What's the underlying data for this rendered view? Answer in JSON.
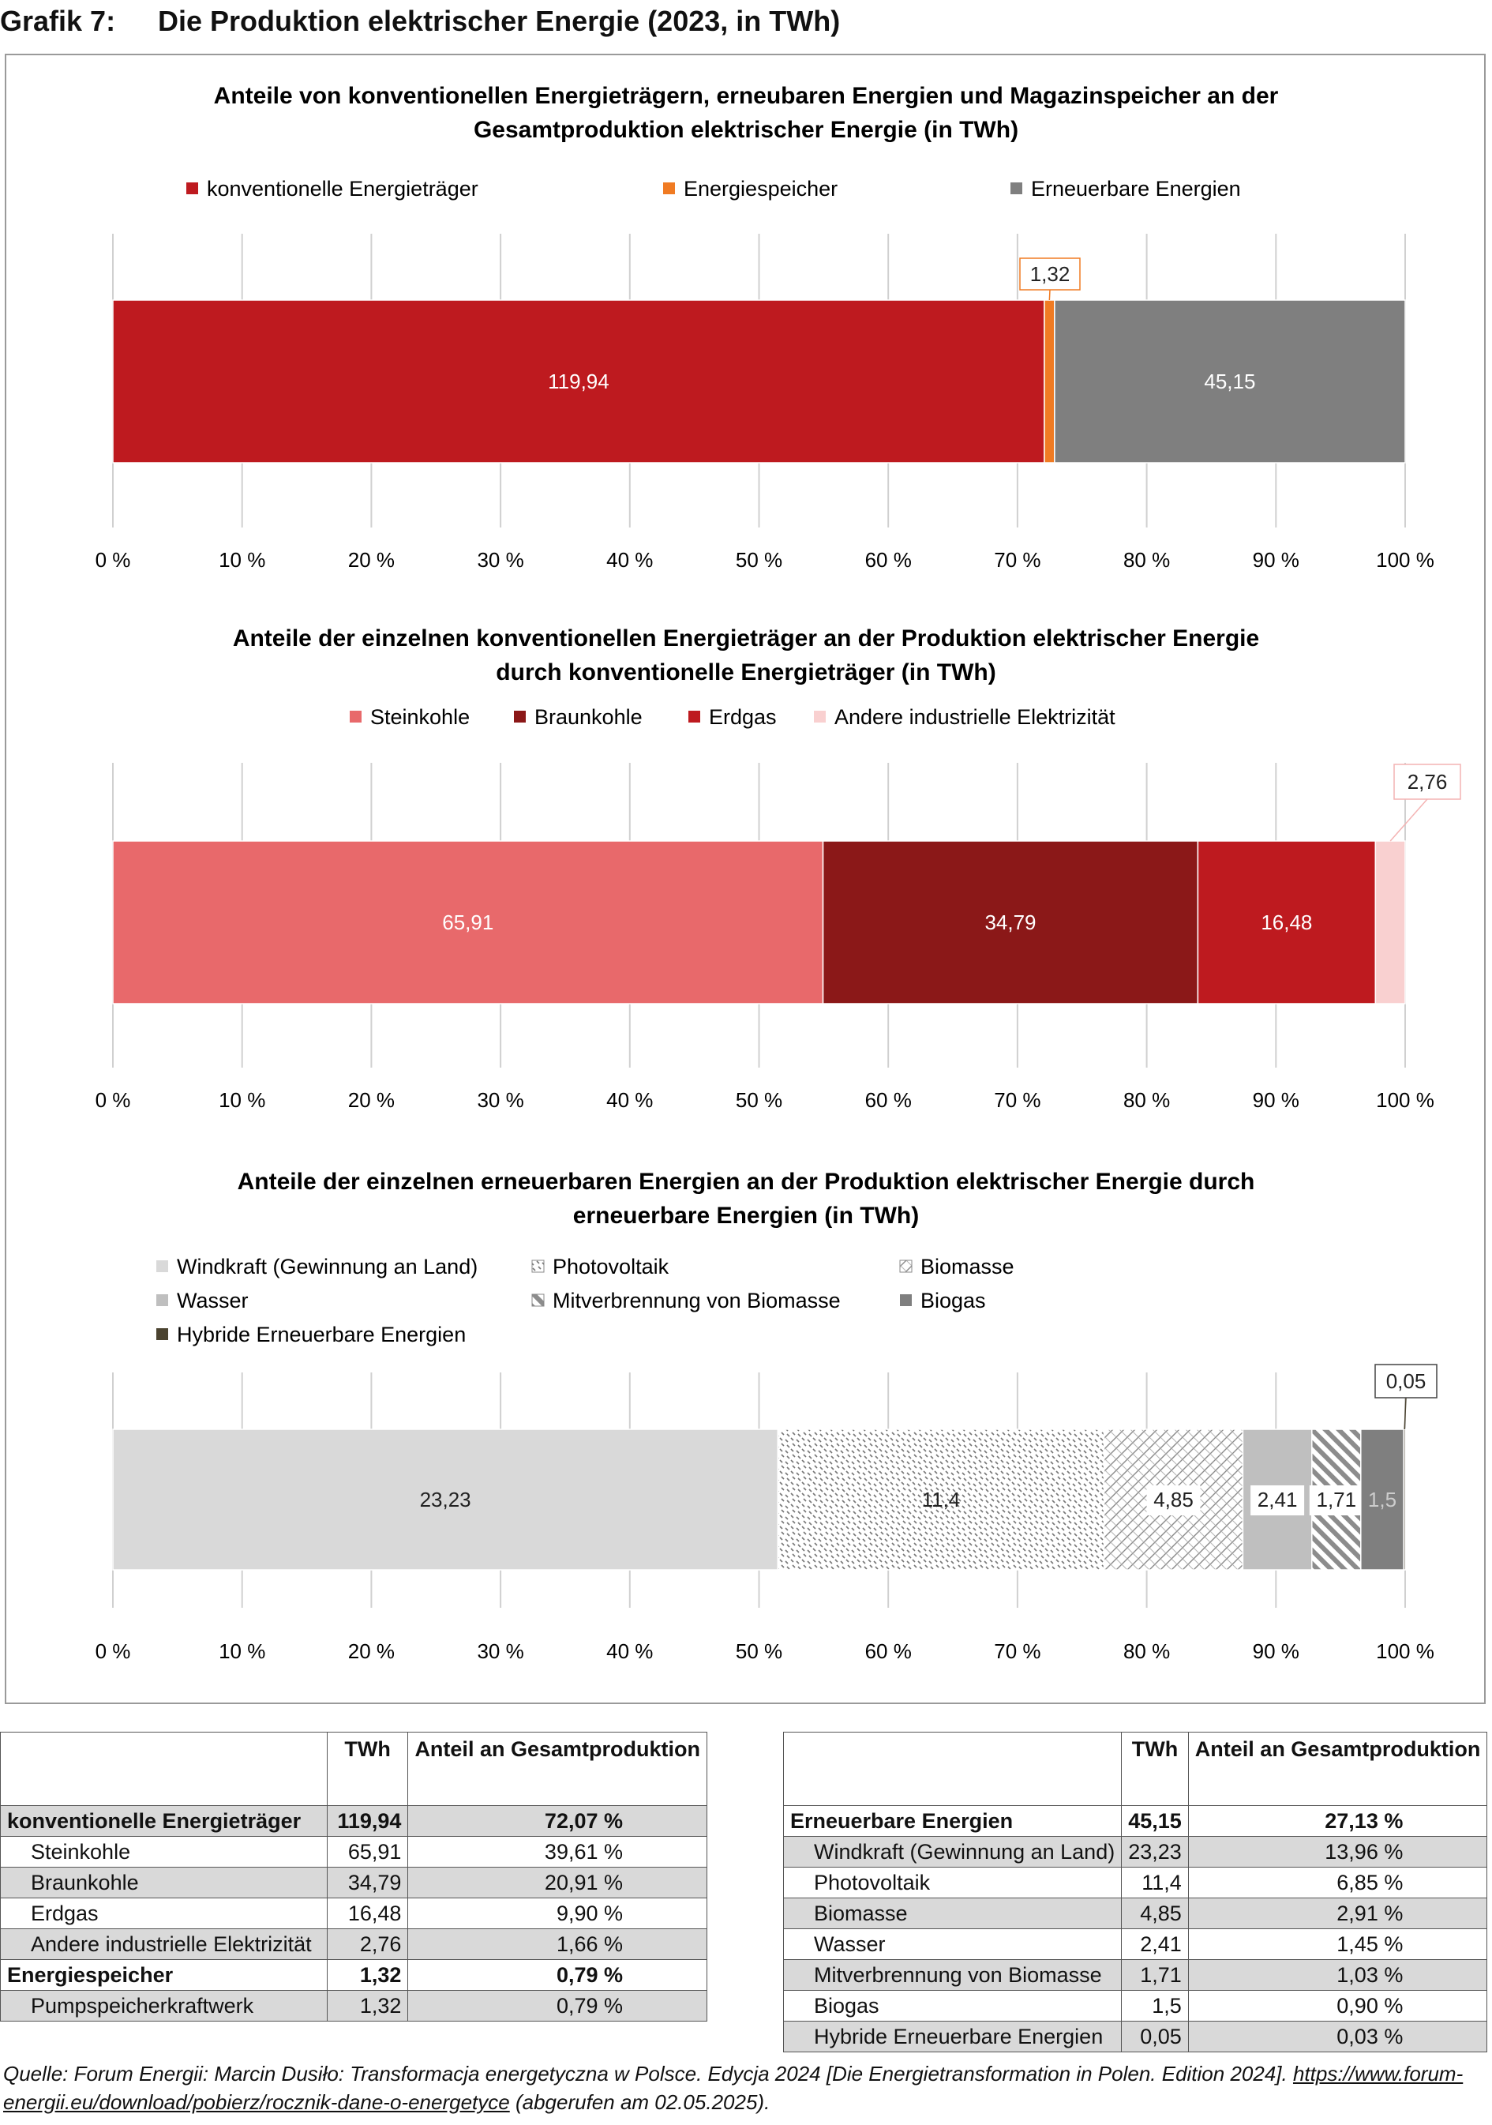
{
  "figure": {
    "number": "Grafik 7:",
    "title": "Die Produktion elektrischer Energie (2023, in TWh)"
  },
  "axis_ticks": [
    "0 %",
    "10 %",
    "20 %",
    "30 %",
    "40 %",
    "50 %",
    "60 %",
    "70 %",
    "80 %",
    "90 %",
    "100 %"
  ],
  "chart_data": [
    {
      "type": "bar",
      "orientation": "horizontal",
      "stacked": "percent",
      "title": "Anteile von konventionellen Energieträgern, erneubaren Energien und Magazinspeicher an der Gesamtproduktion elektrischer Energie (in TWh)",
      "title_lines": [
        "Anteile von konventionellen Energieträgern, erneubaren Energien und Magazinspeicher an der",
        "Gesamtproduktion elektrischer Energie (in TWh)"
      ],
      "xlim": [
        0,
        100
      ],
      "legend_position": "top",
      "series": [
        {
          "name": "konventionelle Energieträger",
          "value": 119.94,
          "label": "119,94",
          "color": "#be1a1f"
        },
        {
          "name": "Energiespeicher",
          "value": 1.32,
          "label": "1,32",
          "color": "#f07b23"
        },
        {
          "name": "Erneuerbare Energien",
          "value": 45.15,
          "label": "45,15",
          "color": "#7f7f7f"
        }
      ]
    },
    {
      "type": "bar",
      "orientation": "horizontal",
      "stacked": "percent",
      "title": "Anteile der einzelnen konventionellen Energieträger an der Produktion elektrischer Energie durch konventionelle Energieträger (in TWh)",
      "title_lines": [
        "Anteile der einzelnen konventionellen Energieträger an der Produktion elektrischer Energie",
        "durch konventionelle Energieträger (in TWh)"
      ],
      "xlim": [
        0,
        100
      ],
      "legend_position": "top",
      "series": [
        {
          "name": "Steinkohle",
          "value": 65.91,
          "label": "65,91",
          "color": "#e8696b"
        },
        {
          "name": "Braunkohle",
          "value": 34.79,
          "label": "34,79",
          "color": "#8b1818"
        },
        {
          "name": "Erdgas",
          "value": 16.48,
          "label": "16,48",
          "color": "#be1a1f"
        },
        {
          "name": "Andere industrielle Elektrizität",
          "value": 2.76,
          "label": "2,76",
          "color": "#f9d0d0"
        }
      ]
    },
    {
      "type": "bar",
      "orientation": "horizontal",
      "stacked": "percent",
      "title": "Anteile der einzelnen erneuerbaren Energien an der Produktion elektrischer Energie durch erneuerbare Energien (in TWh)",
      "title_lines": [
        "Anteile der einzelnen erneuerbaren Energien an der Produktion elektrischer Energie durch",
        "erneuerbare Energien (in TWh)"
      ],
      "xlim": [
        0,
        100
      ],
      "legend_position": "top",
      "series": [
        {
          "name": "Windkraft (Gewinnung an Land)",
          "value": 23.23,
          "label": "23,23",
          "color": "#d9d9d9"
        },
        {
          "name": "Photovoltaik",
          "value": 11.4,
          "label": "11,4",
          "color": "#ffffff"
        },
        {
          "name": "Biomasse",
          "value": 4.85,
          "label": "4,85",
          "color": "#ffffff"
        },
        {
          "name": "Wasser",
          "value": 2.41,
          "label": "2,41",
          "color": "#bfbfbf"
        },
        {
          "name": "Mitverbrennung von Biomasse",
          "value": 1.71,
          "label": "1,71",
          "color": "#ffffff"
        },
        {
          "name": "Biogas",
          "value": 1.5,
          "label": "1,5",
          "color": "#7f7f7f"
        },
        {
          "name": "Hybride Erneuerbare Energien",
          "value": 0.05,
          "label": "0,05",
          "color": "#4b4330"
        }
      ]
    }
  ],
  "table_left": {
    "headers": [
      "",
      "TWh",
      "Anteil an Gesamtproduktion"
    ],
    "rows": [
      {
        "label": "konventionelle Energieträger",
        "twh": "119,94",
        "share": "72,07 %",
        "bold": true,
        "indent": false,
        "shade": true
      },
      {
        "label": "Steinkohle",
        "twh": "65,91",
        "share": "39,61 %",
        "bold": false,
        "indent": true,
        "shade": false
      },
      {
        "label": "Braunkohle",
        "twh": "34,79",
        "share": "20,91 %",
        "bold": false,
        "indent": true,
        "shade": true
      },
      {
        "label": "Erdgas",
        "twh": "16,48",
        "share": "9,90 %",
        "bold": false,
        "indent": true,
        "shade": false
      },
      {
        "label": "Andere industrielle Elektrizität",
        "twh": "2,76",
        "share": "1,66 %",
        "bold": false,
        "indent": true,
        "shade": true
      },
      {
        "label": "Energiespeicher",
        "twh": "1,32",
        "share": "0,79 %",
        "bold": true,
        "indent": false,
        "shade": false
      },
      {
        "label": "Pumpspeicherkraftwerk",
        "twh": "1,32",
        "share": "0,79 %",
        "bold": false,
        "indent": true,
        "shade": true
      }
    ]
  },
  "table_right": {
    "headers": [
      "",
      "TWh",
      "Anteil an Gesamtproduktion"
    ],
    "rows": [
      {
        "label": "Erneuerbare Energien",
        "twh": "45,15",
        "share": "27,13 %",
        "bold": true,
        "indent": false,
        "shade": false
      },
      {
        "label": "Windkraft (Gewinnung an Land)",
        "twh": "23,23",
        "share": "13,96 %",
        "bold": false,
        "indent": true,
        "shade": true
      },
      {
        "label": "Photovoltaik",
        "twh": "11,4",
        "share": "6,85 %",
        "bold": false,
        "indent": true,
        "shade": false
      },
      {
        "label": "Biomasse",
        "twh": "4,85",
        "share": "2,91 %",
        "bold": false,
        "indent": true,
        "shade": true
      },
      {
        "label": "Wasser",
        "twh": "2,41",
        "share": "1,45 %",
        "bold": false,
        "indent": true,
        "shade": false
      },
      {
        "label": "Mitverbrennung von Biomasse",
        "twh": "1,71",
        "share": "1,03 %",
        "bold": false,
        "indent": true,
        "shade": true
      },
      {
        "label": "Biogas",
        "twh": "1,5",
        "share": "0,90 %",
        "bold": false,
        "indent": true,
        "shade": false
      },
      {
        "label": "Hybride Erneuerbare Energien",
        "twh": "0,05",
        "share": "0,03 %",
        "bold": false,
        "indent": true,
        "shade": true
      }
    ]
  },
  "source": {
    "text": "Quelle: Forum Energii: Marcin Dusiło: Transformacja energetyczna w Polsce. Edycja 2024 [Die Energietransformation in Polen. Edition 2024]. ",
    "link": "https://www.forum-energii.eu/download/pobierz/rocznik-dane-o-energetyce",
    "suffix": " (abgerufen am 02.05.2025)."
  }
}
